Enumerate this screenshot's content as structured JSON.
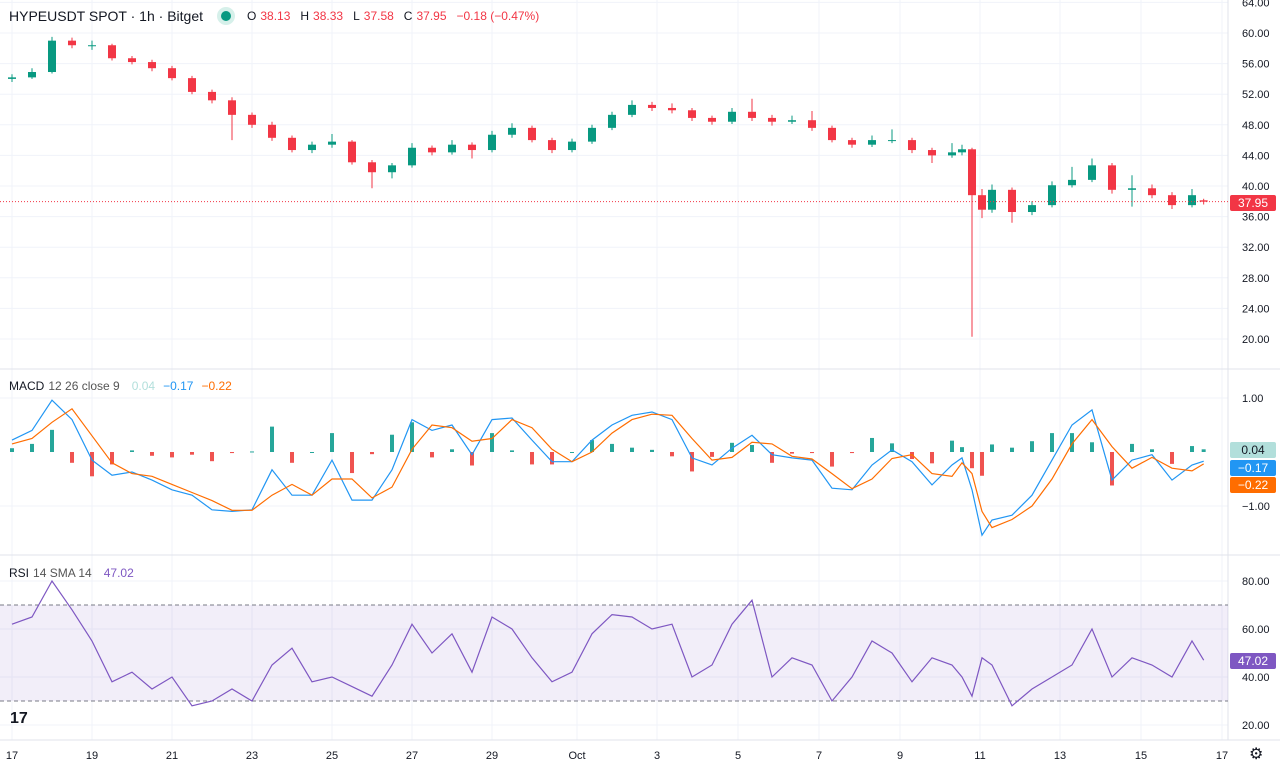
{
  "header": {
    "symbol": "HYPEUSDT SPOT · 1h · Bitget",
    "status_color": "#089981",
    "o_label": "O",
    "o": "38.13",
    "h_label": "H",
    "h": "38.33",
    "l_label": "L",
    "l": "37.58",
    "c_label": "C",
    "c": "37.95",
    "change": "−0.18 (−0.47%)"
  },
  "macd_legend": {
    "name": "MACD",
    "params": "12 26 close 9",
    "hist": "0.04",
    "macd": "−0.17",
    "signal": "−0.22"
  },
  "rsi_legend": {
    "name": "RSI",
    "params": "14 SMA 14",
    "value": "47.02"
  },
  "price_tag": "37.95",
  "macd_tags": {
    "hist": "0.04",
    "macd": "−0.17",
    "signal": "−0.22"
  },
  "rsi_tag": "47.02",
  "colors": {
    "up": "#089981",
    "down": "#f23645",
    "macd": "#2196f3",
    "signal": "#ff6d00",
    "rsi": "#7e57c2",
    "hist_up": "#26a69a",
    "hist_down": "#ef5350"
  },
  "icons": {
    "logo": "tradingview-logo",
    "settings": "gear-icon"
  },
  "chart_data": [
    {
      "type": "candlestick",
      "title": "HYPEUSDT SPOT · 1h · Bitget",
      "yticks": [
        "64.00",
        "60.00",
        "56.00",
        "52.00",
        "48.00",
        "44.00",
        "40.00",
        "36.00",
        "32.00",
        "28.00",
        "24.00",
        "20.00"
      ],
      "ylim": [
        19,
        64.5
      ],
      "xticks": [
        "17",
        "19",
        "21",
        "23",
        "25",
        "27",
        "29",
        "Oct",
        "3",
        "5",
        "7",
        "9",
        "11",
        "13",
        "15",
        "17"
      ],
      "last_price": 37.95,
      "ohlc": [
        [
          "09-17 00:00",
          54.0,
          54.6,
          53.6,
          54.2
        ],
        [
          "09-17 12:00",
          54.2,
          55.4,
          54.0,
          54.9
        ],
        [
          "09-18 00:00",
          54.9,
          59.5,
          54.7,
          59.0
        ],
        [
          "09-18 12:00",
          59.0,
          59.4,
          58.0,
          58.4
        ],
        [
          "09-19 00:00",
          58.4,
          59.0,
          57.8,
          58.4
        ],
        [
          "09-19 12:00",
          58.4,
          58.6,
          56.4,
          56.7
        ],
        [
          "09-20 00:00",
          56.7,
          57.0,
          55.9,
          56.2
        ],
        [
          "09-20 12:00",
          56.2,
          56.5,
          55.0,
          55.4
        ],
        [
          "09-21 00:00",
          55.4,
          55.7,
          53.8,
          54.1
        ],
        [
          "09-21 12:00",
          54.1,
          54.4,
          52.0,
          52.3
        ],
        [
          "09-22 00:00",
          52.3,
          52.6,
          50.8,
          51.2
        ],
        [
          "09-22 12:00",
          51.2,
          51.6,
          46.0,
          49.3
        ],
        [
          "09-23 00:00",
          49.3,
          49.6,
          47.6,
          48.0
        ],
        [
          "09-23 12:00",
          48.0,
          48.4,
          45.9,
          46.3
        ],
        [
          "09-24 00:00",
          46.3,
          46.6,
          44.4,
          44.7
        ],
        [
          "09-24 12:00",
          44.7,
          45.8,
          44.3,
          45.4
        ],
        [
          "09-25 00:00",
          45.4,
          46.8,
          45.0,
          45.8
        ],
        [
          "09-25 12:00",
          45.8,
          46.0,
          42.8,
          43.1
        ],
        [
          "09-26 00:00",
          43.1,
          43.4,
          39.7,
          41.8
        ],
        [
          "09-26 12:00",
          41.8,
          43.0,
          41.0,
          42.7
        ],
        [
          "09-27 00:00",
          42.7,
          45.6,
          42.4,
          45.0
        ],
        [
          "09-27 12:00",
          45.0,
          45.3,
          44.0,
          44.4
        ],
        [
          "09-28 00:00",
          44.4,
          46.0,
          44.1,
          45.4
        ],
        [
          "09-28 12:00",
          45.4,
          45.7,
          43.6,
          44.7
        ],
        [
          "09-29 00:00",
          44.7,
          47.2,
          44.4,
          46.7
        ],
        [
          "09-29 12:00",
          46.7,
          48.2,
          46.3,
          47.6
        ],
        [
          "09-30 00:00",
          47.6,
          47.9,
          45.7,
          46.0
        ],
        [
          "09-30 12:00",
          46.0,
          46.3,
          44.3,
          44.7
        ],
        [
          "10-01 00:00",
          44.7,
          46.2,
          44.4,
          45.8
        ],
        [
          "10-01 12:00",
          45.8,
          48.0,
          45.5,
          47.6
        ],
        [
          "10-02 00:00",
          47.6,
          49.7,
          47.3,
          49.3
        ],
        [
          "10-02 12:00",
          49.3,
          51.2,
          49.0,
          50.6
        ],
        [
          "10-03 00:00",
          50.6,
          51.0,
          49.8,
          50.2
        ],
        [
          "10-03 12:00",
          50.2,
          50.8,
          49.5,
          49.9
        ],
        [
          "10-04 00:00",
          49.9,
          50.2,
          48.5,
          48.9
        ],
        [
          "10-04 12:00",
          48.9,
          49.2,
          48.0,
          48.4
        ],
        [
          "10-05 00:00",
          48.4,
          50.2,
          48.1,
          49.7
        ],
        [
          "10-05 12:00",
          49.7,
          51.4,
          48.5,
          48.9
        ],
        [
          "10-06 00:00",
          48.9,
          49.3,
          47.9,
          48.4
        ],
        [
          "10-06 12:00",
          48.4,
          49.2,
          48.1,
          48.6
        ],
        [
          "10-07 00:00",
          48.6,
          49.8,
          47.2,
          47.6
        ],
        [
          "10-07 12:00",
          47.6,
          47.9,
          45.7,
          46.0
        ],
        [
          "10-08 00:00",
          46.0,
          46.3,
          45.0,
          45.4
        ],
        [
          "10-08 12:00",
          45.4,
          46.6,
          45.1,
          46.0
        ],
        [
          "10-09 00:00",
          46.0,
          47.4,
          45.6,
          46.0
        ],
        [
          "10-09 12:00",
          46.0,
          46.3,
          44.3,
          44.7
        ],
        [
          "10-10 00:00",
          44.7,
          45.0,
          43.0,
          44.0
        ],
        [
          "10-10 12:00",
          44.0,
          45.6,
          43.7,
          44.4
        ],
        [
          "10-10 18:00",
          44.4,
          45.4,
          44.0,
          44.8
        ],
        [
          "10-11 00:00",
          44.8,
          45.0,
          20.3,
          38.8
        ],
        [
          "10-11 06:00",
          38.8,
          39.6,
          35.8,
          36.9
        ],
        [
          "10-11 12:00",
          36.9,
          40.2,
          36.5,
          39.5
        ],
        [
          "10-12 00:00",
          39.5,
          39.8,
          35.2,
          36.6
        ],
        [
          "10-12 12:00",
          36.6,
          38.0,
          36.2,
          37.5
        ],
        [
          "10-13 00:00",
          37.5,
          40.6,
          37.2,
          40.1
        ],
        [
          "10-13 12:00",
          40.1,
          42.5,
          39.8,
          40.8
        ],
        [
          "10-14 00:00",
          40.8,
          43.6,
          40.5,
          42.7
        ],
        [
          "10-14 12:00",
          42.7,
          43.0,
          39.0,
          39.5
        ],
        [
          "10-15 00:00",
          39.5,
          41.4,
          37.3,
          39.7
        ],
        [
          "10-15 12:00",
          39.7,
          40.2,
          38.4,
          38.8
        ],
        [
          "10-16 00:00",
          38.8,
          39.2,
          37.0,
          37.5
        ],
        [
          "10-16 12:00",
          37.5,
          39.6,
          37.2,
          38.8
        ],
        [
          "10-16 19:00",
          38.13,
          38.33,
          37.58,
          37.95
        ]
      ]
    },
    {
      "type": "line",
      "title": "MACD 12 26 close 9",
      "yticks": [
        "1.00",
        "−1.00"
      ],
      "ylim": [
        -1.7,
        1.0
      ],
      "series": [
        {
          "name": "MACD",
          "values": [
            0.22,
            0.4,
            0.96,
            0.6,
            -0.15,
            -0.43,
            -0.37,
            -0.52,
            -0.7,
            -0.8,
            -1.07,
            -1.1,
            -1.07,
            -0.33,
            -0.8,
            -0.8,
            -0.15,
            -0.89,
            -0.89,
            -0.33,
            0.6,
            0.4,
            0.5,
            -0.05,
            0.6,
            0.63,
            0.22,
            -0.18,
            -0.18,
            0.22,
            0.5,
            0.68,
            0.74,
            0.6,
            -0.11,
            -0.24,
            0.07,
            0.31,
            -0.05,
            -0.11,
            -0.15,
            -0.67,
            -0.7,
            -0.24,
            0.04,
            -0.18,
            -0.61,
            -0.24,
            -0.11,
            -0.7,
            -1.54,
            -1.26,
            -1.17,
            -0.8,
            -0.15,
            0.5,
            0.78,
            -0.52,
            -0.15,
            -0.05,
            -0.52,
            -0.24,
            -0.17
          ]
        },
        {
          "name": "Signal",
          "values": [
            0.15,
            0.25,
            0.55,
            0.8,
            0.3,
            -0.2,
            -0.4,
            -0.45,
            -0.6,
            -0.75,
            -0.9,
            -1.08,
            -1.08,
            -0.8,
            -0.6,
            -0.8,
            -0.5,
            -0.5,
            -0.85,
            -0.65,
            0.05,
            0.5,
            0.45,
            0.2,
            0.25,
            0.6,
            0.45,
            0.05,
            -0.18,
            0.0,
            0.35,
            0.6,
            0.7,
            0.68,
            0.25,
            -0.15,
            -0.1,
            0.18,
            0.15,
            -0.08,
            -0.13,
            -0.4,
            -0.68,
            -0.5,
            -0.12,
            -0.05,
            -0.4,
            -0.45,
            -0.2,
            -0.4,
            -1.1,
            -1.4,
            -1.25,
            -1.0,
            -0.5,
            0.15,
            0.6,
            0.1,
            -0.3,
            -0.1,
            -0.3,
            -0.35,
            -0.22
          ]
        }
      ]
    },
    {
      "type": "line",
      "title": "RSI 14 SMA 14",
      "yticks": [
        "80.00",
        "60.00",
        "40.00",
        "20.00"
      ],
      "ylim": [
        18,
        86
      ],
      "bands": [
        30,
        70
      ],
      "series": [
        {
          "name": "RSI",
          "values": [
            62,
            65,
            80,
            68,
            55,
            38,
            42,
            35,
            40,
            28,
            30,
            35,
            30,
            45,
            52,
            38,
            40,
            36,
            32,
            45,
            62,
            50,
            58,
            42,
            65,
            60,
            48,
            38,
            42,
            58,
            66,
            65,
            60,
            62,
            40,
            45,
            62,
            72,
            40,
            48,
            45,
            30,
            40,
            55,
            50,
            38,
            48,
            45,
            40,
            32,
            48,
            45,
            28,
            35,
            40,
            45,
            60,
            40,
            48,
            45,
            40,
            55,
            47.02
          ]
        }
      ]
    }
  ]
}
